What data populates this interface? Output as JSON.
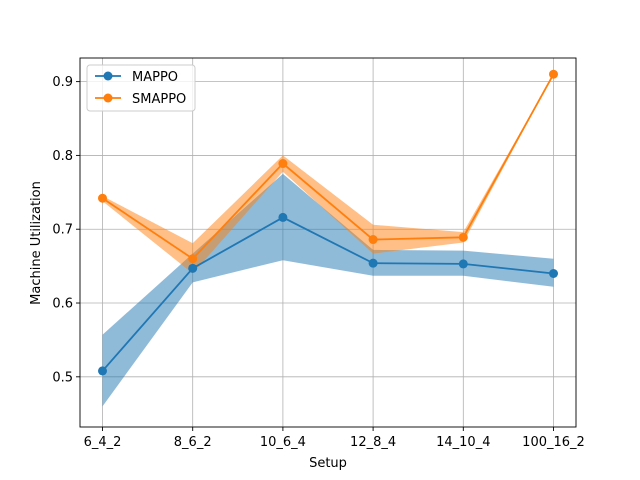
{
  "chart_data": {
    "type": "line",
    "xlabel": "Setup",
    "ylabel": "Machine Utilization",
    "categories": [
      "6_4_2",
      "8_6_2",
      "10_6_4",
      "12_8_4",
      "14_10_4",
      "100_16_2"
    ],
    "ylim": [
      0.432,
      0.932
    ],
    "yticks": [
      0.5,
      0.6,
      0.7,
      0.8,
      0.9
    ],
    "ytick_labels": [
      "0.5",
      "0.6",
      "0.7",
      "0.8",
      "0.9"
    ],
    "grid": true,
    "legend_position": "top-left",
    "series": [
      {
        "name": "MAPPO",
        "color": "#1f77b4",
        "values": [
          0.508,
          0.647,
          0.716,
          0.654,
          0.653,
          0.64
        ],
        "lower": [
          0.46,
          0.628,
          0.658,
          0.637,
          0.637,
          0.622
        ],
        "upper": [
          0.557,
          0.667,
          0.775,
          0.672,
          0.671,
          0.66
        ]
      },
      {
        "name": "SMAPPO",
        "color": "#ff7f0e",
        "values": [
          0.742,
          0.66,
          0.789,
          0.686,
          0.689,
          0.91
        ],
        "lower": [
          0.738,
          0.64,
          0.778,
          0.667,
          0.682,
          0.91
        ],
        "upper": [
          0.745,
          0.681,
          0.8,
          0.706,
          0.696,
          0.91
        ]
      }
    ]
  }
}
